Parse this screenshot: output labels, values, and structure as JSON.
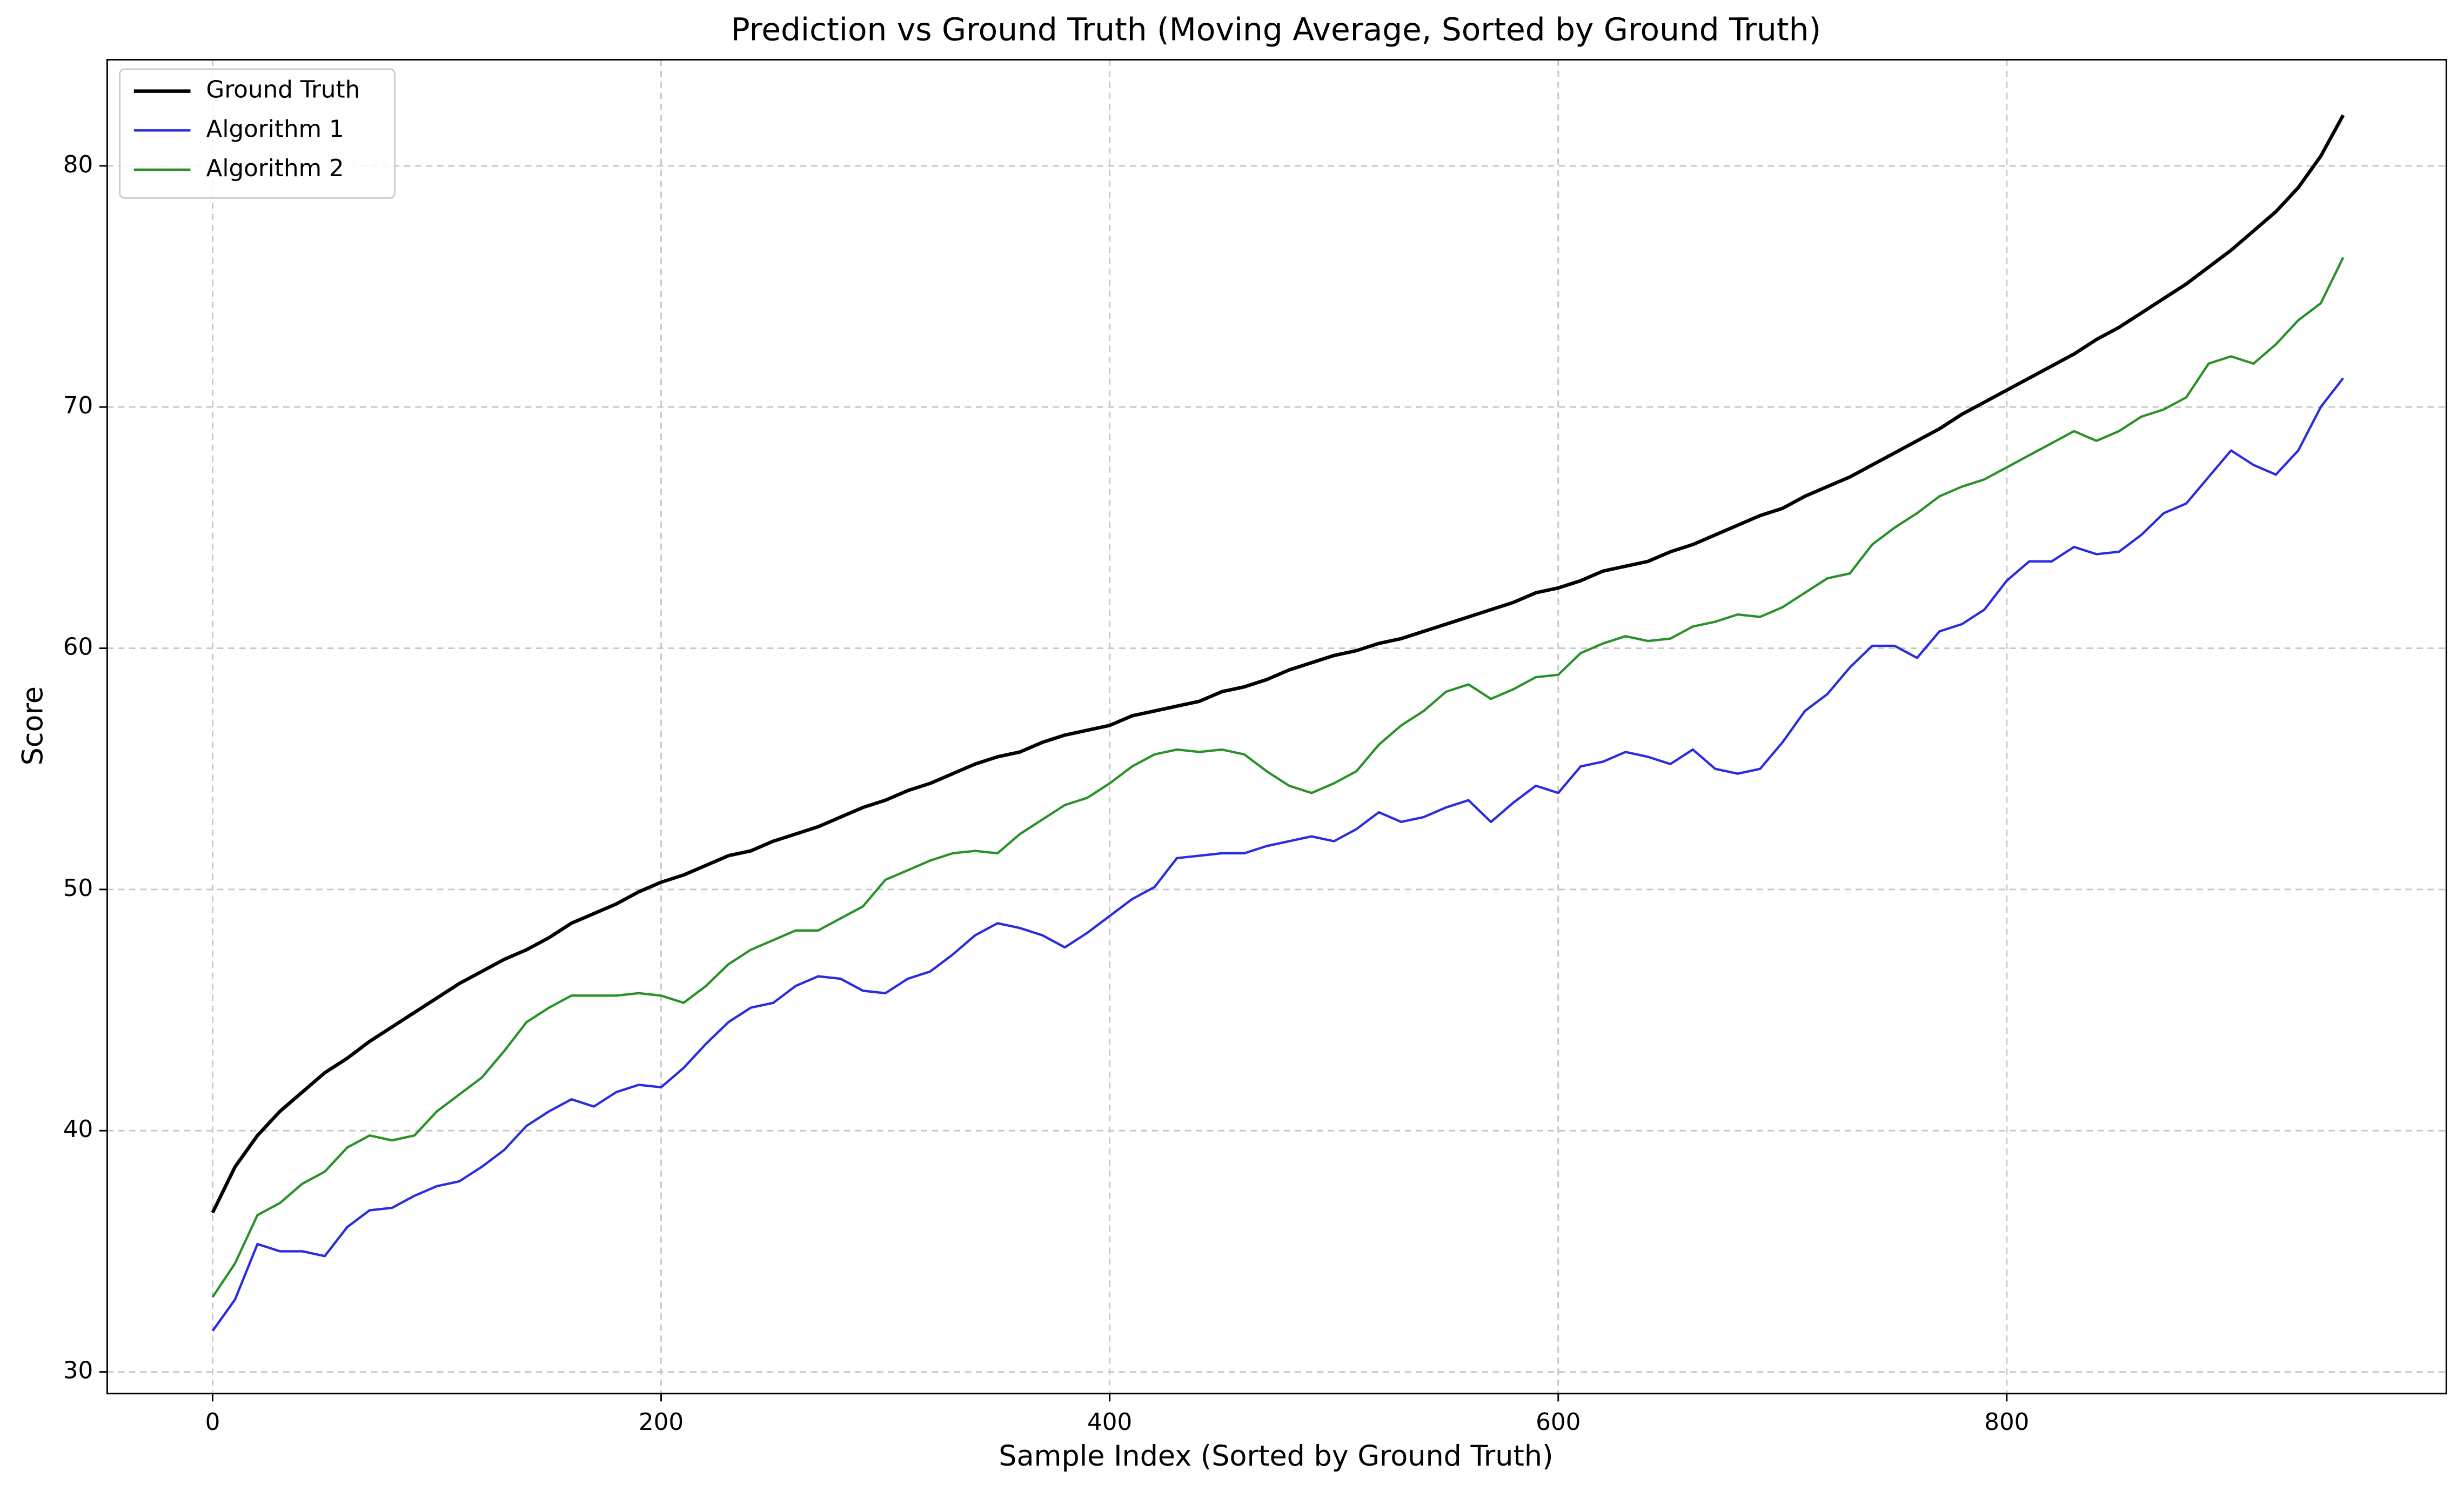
{
  "chart_data": {
    "type": "line",
    "title": "Prediction vs Ground Truth (Moving Average, Sorted by Ground Truth)",
    "x_label": "Sample Index (Sorted by Ground Truth)",
    "y_label": "Score",
    "x": [
      0,
      10,
      20,
      30,
      40,
      50,
      60,
      70,
      80,
      90,
      100,
      110,
      120,
      130,
      140,
      150,
      160,
      170,
      180,
      190,
      200,
      210,
      220,
      230,
      240,
      250,
      260,
      270,
      280,
      290,
      300,
      310,
      320,
      330,
      340,
      350,
      360,
      370,
      380,
      390,
      400,
      410,
      420,
      430,
      440,
      450,
      460,
      470,
      480,
      490,
      500,
      510,
      520,
      530,
      540,
      550,
      560,
      570,
      580,
      590,
      600,
      610,
      620,
      630,
      640,
      650,
      660,
      670,
      680,
      690,
      700,
      710,
      720,
      730,
      740,
      750,
      760,
      770,
      780,
      790,
      800,
      810,
      820,
      830,
      840,
      850,
      860,
      870,
      880,
      890,
      900,
      910,
      920,
      930,
      940,
      950
    ],
    "series": [
      {
        "name": "Ground Truth",
        "color": "#000000",
        "width": 2.2,
        "values": [
          36.6,
          38.5,
          39.8,
          40.8,
          41.6,
          42.4,
          43.0,
          43.7,
          44.3,
          44.9,
          45.5,
          46.1,
          46.6,
          47.1,
          47.5,
          48.0,
          48.6,
          49.0,
          49.4,
          49.9,
          50.3,
          50.6,
          51.0,
          51.4,
          51.6,
          52.0,
          52.3,
          52.6,
          53.0,
          53.4,
          53.7,
          54.1,
          54.4,
          54.8,
          55.2,
          55.5,
          55.7,
          56.1,
          56.4,
          56.6,
          56.8,
          57.2,
          57.4,
          57.6,
          57.8,
          58.2,
          58.4,
          58.7,
          59.1,
          59.4,
          59.7,
          59.9,
          60.2,
          60.4,
          60.7,
          61.0,
          61.3,
          61.6,
          61.9,
          62.3,
          62.5,
          62.8,
          63.2,
          63.4,
          63.6,
          64.0,
          64.3,
          64.7,
          65.1,
          65.5,
          65.8,
          66.3,
          66.7,
          67.1,
          67.6,
          68.1,
          68.6,
          69.1,
          69.7,
          70.2,
          70.7,
          71.2,
          71.7,
          72.2,
          72.8,
          73.3,
          73.9,
          74.5,
          75.1,
          75.8,
          76.5,
          77.3,
          78.1,
          79.1,
          80.4,
          82.1
        ]
      },
      {
        "name": "Algorithm 1",
        "color": "#2b2be0",
        "width": 1.5,
        "values": [
          31.7,
          33.0,
          35.3,
          35.0,
          35.0,
          34.8,
          36.0,
          36.7,
          36.8,
          37.3,
          37.7,
          37.9,
          38.5,
          39.2,
          40.2,
          40.8,
          41.3,
          41.0,
          41.6,
          41.9,
          41.8,
          42.6,
          43.6,
          44.5,
          45.1,
          45.3,
          46.0,
          46.4,
          46.3,
          45.8,
          45.7,
          46.3,
          46.6,
          47.3,
          48.1,
          48.6,
          48.4,
          48.1,
          47.6,
          48.2,
          48.9,
          49.6,
          50.1,
          51.3,
          51.4,
          51.5,
          51.5,
          51.8,
          52.0,
          52.2,
          52.0,
          52.5,
          53.2,
          52.8,
          53.0,
          53.4,
          53.7,
          52.8,
          53.6,
          54.3,
          54.0,
          55.1,
          55.3,
          55.7,
          55.5,
          55.2,
          55.8,
          55.0,
          54.8,
          55.0,
          56.1,
          57.4,
          58.1,
          59.2,
          60.1,
          60.1,
          59.6,
          60.7,
          61.0,
          61.6,
          62.8,
          63.6,
          63.6,
          64.2,
          63.9,
          64.0,
          64.7,
          65.6,
          66.0,
          67.1,
          68.2,
          67.6,
          67.2,
          68.2,
          70.0,
          71.2
        ]
      },
      {
        "name": "Algorithm 2",
        "color": "#2a912a",
        "width": 1.5,
        "values": [
          33.1,
          34.5,
          36.5,
          37.0,
          37.8,
          38.3,
          39.3,
          39.8,
          39.6,
          39.8,
          40.8,
          41.5,
          42.2,
          43.3,
          44.5,
          45.1,
          45.6,
          45.6,
          45.6,
          45.7,
          45.6,
          45.3,
          46.0,
          46.9,
          47.5,
          47.9,
          48.3,
          48.3,
          48.8,
          49.3,
          50.4,
          50.8,
          51.2,
          51.5,
          51.6,
          51.5,
          52.3,
          52.9,
          53.5,
          53.8,
          54.4,
          55.1,
          55.6,
          55.8,
          55.7,
          55.8,
          55.6,
          54.9,
          54.3,
          54.0,
          54.4,
          54.9,
          56.0,
          56.8,
          57.4,
          58.2,
          58.5,
          57.9,
          58.3,
          58.8,
          58.9,
          59.8,
          60.2,
          60.5,
          60.3,
          60.4,
          60.9,
          61.1,
          61.4,
          61.3,
          61.7,
          62.3,
          62.9,
          63.1,
          64.3,
          65.0,
          65.6,
          66.3,
          66.7,
          67.0,
          67.5,
          68.0,
          68.5,
          69.0,
          68.6,
          69.0,
          69.6,
          69.9,
          70.4,
          71.8,
          72.1,
          71.8,
          72.6,
          73.6,
          74.3,
          76.2
        ]
      }
    ],
    "xlim": [
      -47,
      996
    ],
    "xticks": [
      0,
      200,
      400,
      600,
      800
    ],
    "ylim": [
      29.1,
      84.4
    ],
    "yticks": [
      30,
      40,
      50,
      60,
      70,
      80
    ],
    "grid": true,
    "legend": "upper left"
  }
}
